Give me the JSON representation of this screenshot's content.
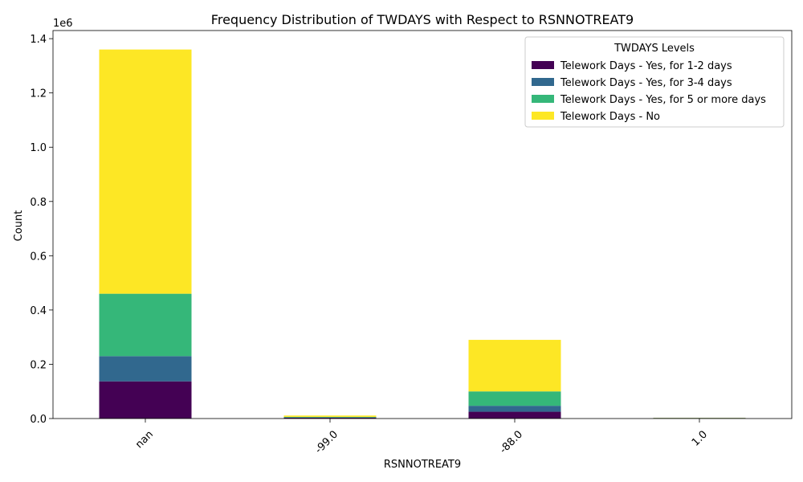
{
  "chart_data": {
    "type": "bar",
    "stacked": true,
    "title": "Frequency Distribution of TWDAYS with Respect to RSNNOTREAT9",
    "xlabel": "RSNNOTREAT9",
    "ylabel": "Count",
    "y_offset_label": "1e6",
    "categories": [
      "nan",
      "-99.0",
      "-88.0",
      "1.0"
    ],
    "ylim": [
      0,
      1430000
    ],
    "yticks": [
      0,
      200000,
      400000,
      600000,
      800000,
      1000000,
      1200000,
      1400000
    ],
    "ytick_labels": [
      "0.0",
      "0.2",
      "0.4",
      "0.6",
      "0.8",
      "1.0",
      "1.2",
      "1.4"
    ],
    "grid": false,
    "legend": {
      "title": "TWDAYS Levels",
      "placement": "top-right"
    },
    "series": [
      {
        "name": "Telework Days - Yes, for 1-2 days",
        "color": "#440154",
        "values": [
          137000,
          3000,
          25000,
          1500
        ]
      },
      {
        "name": "Telework Days - Yes, for 3-4 days",
        "color": "#31688e",
        "values": [
          93000,
          1000,
          22000,
          500
        ]
      },
      {
        "name": "Telework Days - Yes, for 5 or more days",
        "color": "#35b779",
        "values": [
          230000,
          2000,
          53000,
          500
        ]
      },
      {
        "name": "Telework Days - No",
        "color": "#fde725",
        "values": [
          900000,
          5000,
          190000,
          500
        ]
      }
    ]
  }
}
